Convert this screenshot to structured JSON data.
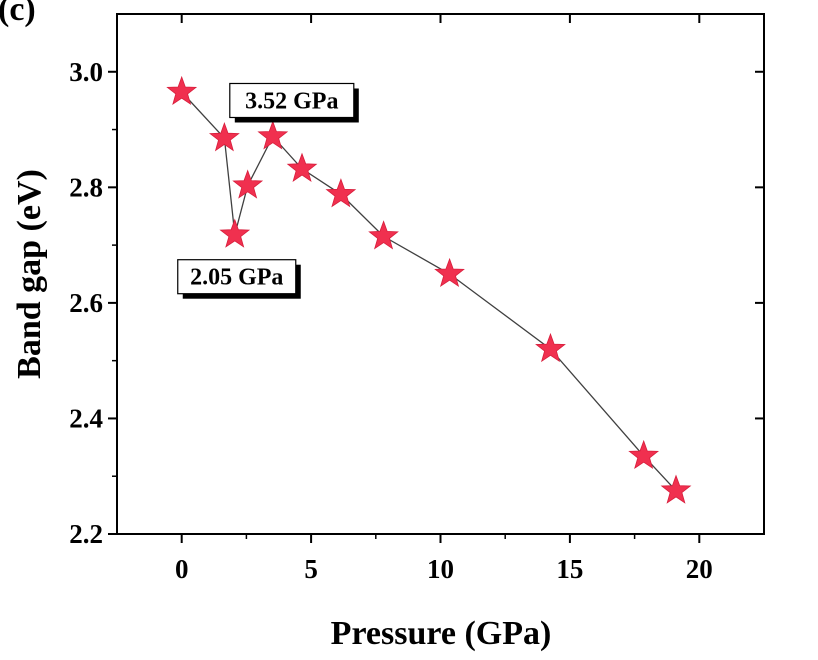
{
  "panel_label": "(c)",
  "chart_data": {
    "type": "scatter",
    "connected": true,
    "marker": "star",
    "colors": {
      "marker": "#f0304f",
      "line": "#404040",
      "axis": "#000000"
    },
    "xlabel": "Pressure (GPa)",
    "ylabel": "Band gap (eV)",
    "xlim": [
      -2.5,
      22.5
    ],
    "ylim": [
      2.2,
      3.1
    ],
    "xticks": [
      0,
      5,
      10,
      15,
      20
    ],
    "yticks": [
      2.2,
      2.4,
      2.6,
      2.8,
      3.0
    ],
    "xtick_labels": [
      "0",
      "5",
      "10",
      "15",
      "20"
    ],
    "ytick_labels": [
      "2.2",
      "2.4",
      "2.6",
      "2.8",
      "3.0"
    ],
    "series": [
      {
        "x": [
          0.0,
          1.65,
          2.05,
          2.55,
          3.52,
          4.65,
          6.15,
          7.8,
          10.35,
          14.25,
          17.85,
          19.1
        ],
        "y": [
          2.965,
          2.885,
          2.718,
          2.803,
          2.888,
          2.832,
          2.788,
          2.715,
          2.65,
          2.52,
          2.335,
          2.275
        ]
      }
    ],
    "annotations": [
      {
        "text": "3.52 GPa",
        "x": 3.52,
        "y": 2.888
      },
      {
        "text": "2.05 GPa",
        "x": 2.05,
        "y": 2.718
      }
    ]
  }
}
